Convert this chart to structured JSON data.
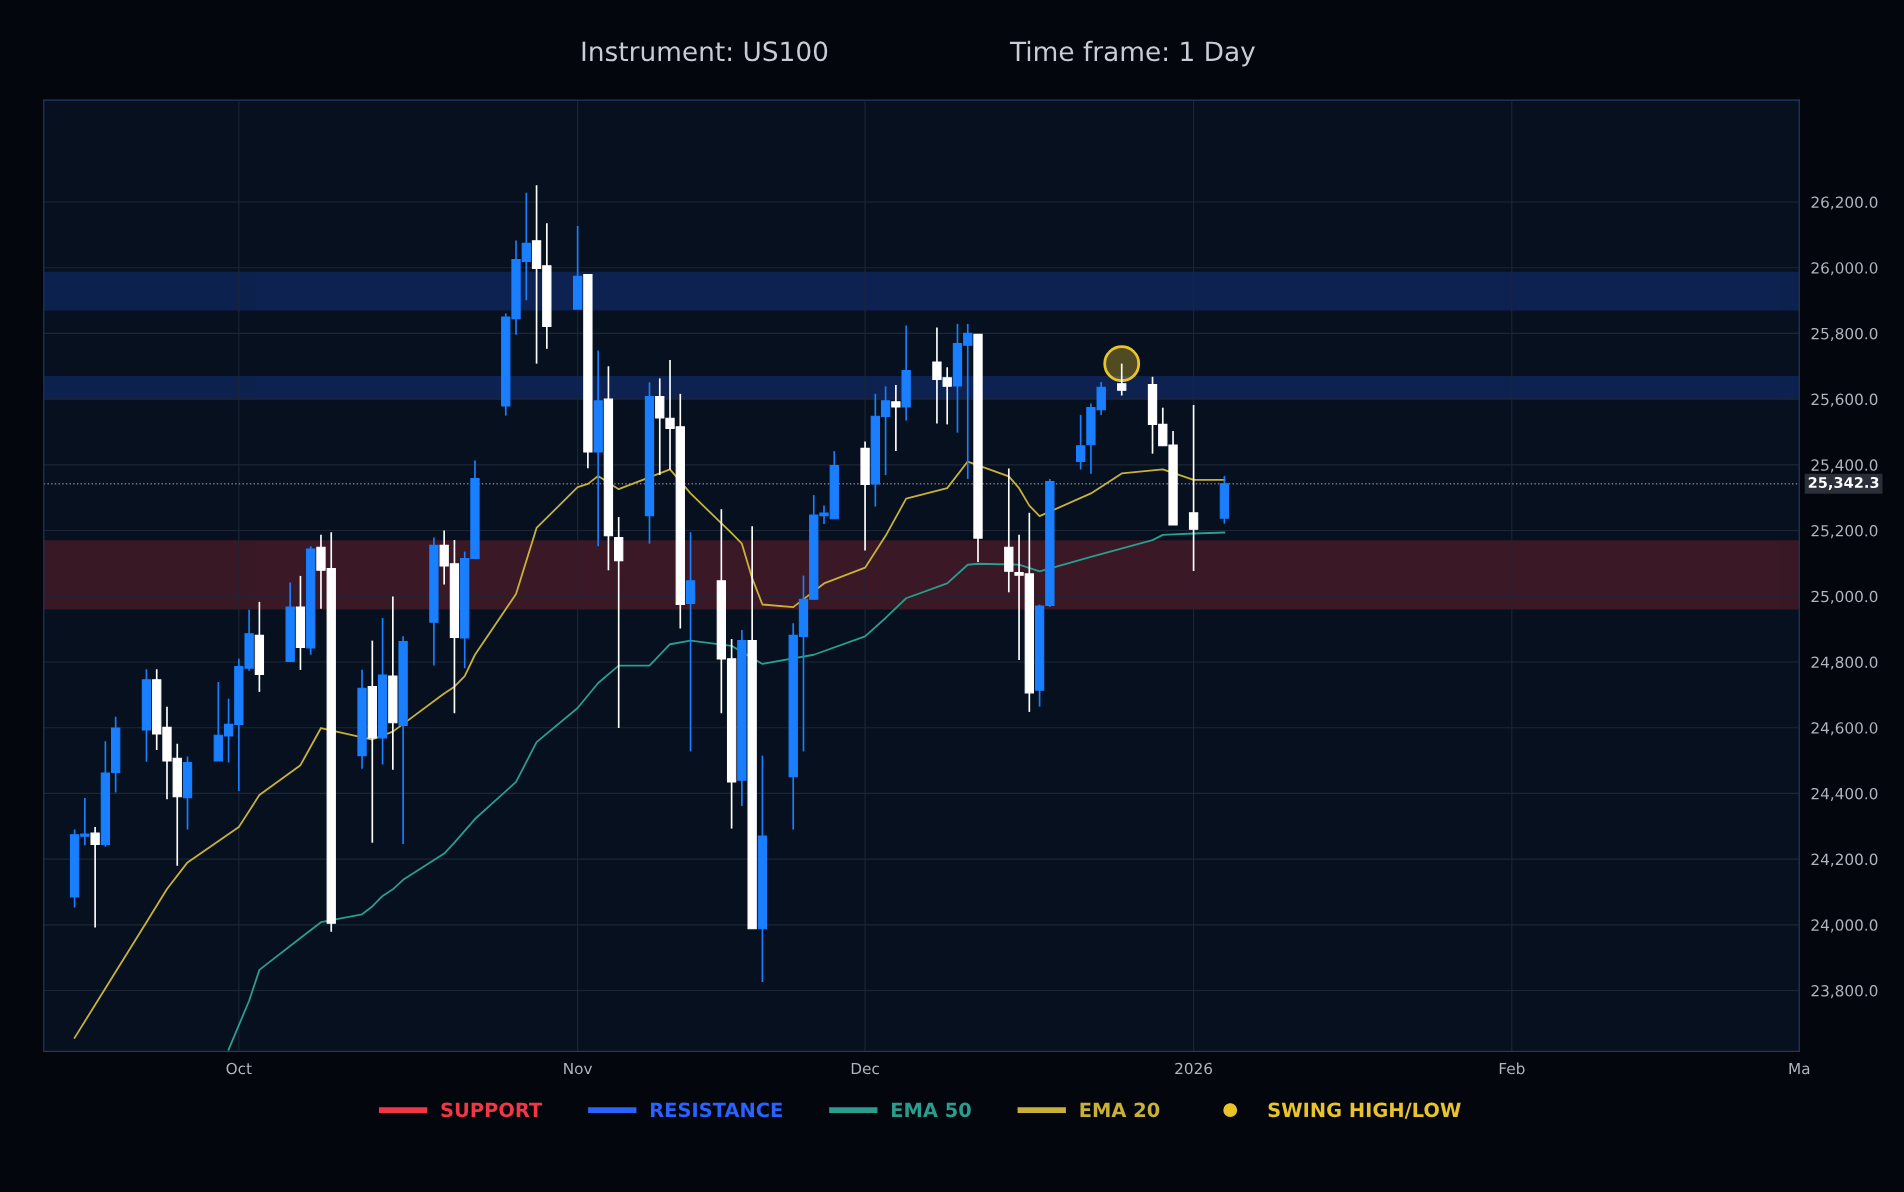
{
  "chart_data": {
    "type": "candlestick",
    "title": "Instrument: US100",
    "subtitle": "Time frame: 1 Day",
    "x": [
      "2025-09-15",
      "2025-09-16",
      "2025-09-17",
      "2025-09-18",
      "2025-09-19",
      "2025-09-22",
      "2025-09-23",
      "2025-09-24",
      "2025-09-25",
      "2025-09-26",
      "2025-09-29",
      "2025-09-30",
      "2025-10-01",
      "2025-10-02",
      "2025-10-03",
      "2025-10-06",
      "2025-10-07",
      "2025-10-08",
      "2025-10-09",
      "2025-10-10",
      "2025-10-13",
      "2025-10-14",
      "2025-10-15",
      "2025-10-16",
      "2025-10-17",
      "2025-10-20",
      "2025-10-21",
      "2025-10-22",
      "2025-10-23",
      "2025-10-24",
      "2025-10-27",
      "2025-10-28",
      "2025-10-29",
      "2025-10-30",
      "2025-10-31",
      "2025-11-03",
      "2025-11-04",
      "2025-11-05",
      "2025-11-06",
      "2025-11-07",
      "2025-11-10",
      "2025-11-11",
      "2025-11-12",
      "2025-11-13",
      "2025-11-14",
      "2025-11-17",
      "2025-11-18",
      "2025-11-19",
      "2025-11-20",
      "2025-11-21",
      "2025-11-24",
      "2025-11-25",
      "2025-11-26",
      "2025-11-27",
      "2025-11-28",
      "2025-12-01",
      "2025-12-02",
      "2025-12-03",
      "2025-12-04",
      "2025-12-05",
      "2025-12-08",
      "2025-12-09",
      "2025-12-10",
      "2025-12-11",
      "2025-12-12",
      "2025-12-15",
      "2025-12-16",
      "2025-12-17",
      "2025-12-18",
      "2025-12-19",
      "2025-12-22",
      "2025-12-23",
      "2025-12-24",
      "2025-12-26",
      "2025-12-29",
      "2025-12-30",
      "2025-12-31",
      "2026-01-02",
      "2026-01-05"
    ],
    "ohlc": [
      [
        24085,
        24290,
        24053,
        24274
      ],
      [
        24270,
        24386,
        24242,
        24276
      ],
      [
        24279,
        24298,
        23992,
        24245
      ],
      [
        24245,
        24559,
        24238,
        24462
      ],
      [
        24464,
        24633,
        24403,
        24599
      ],
      [
        24593,
        24778,
        24496,
        24746
      ],
      [
        24746,
        24778,
        24532,
        24581
      ],
      [
        24601,
        24664,
        24382,
        24499
      ],
      [
        24507,
        24551,
        24180,
        24390
      ],
      [
        24387,
        24512,
        24290,
        24494
      ],
      [
        24499,
        24739,
        24499,
        24577
      ],
      [
        24575,
        24688,
        24494,
        24610
      ],
      [
        24610,
        24810,
        24407,
        24786
      ],
      [
        24781,
        24959,
        24773,
        24886
      ],
      [
        24881,
        24983,
        24709,
        24762
      ],
      [
        24802,
        25042,
        24802,
        24967
      ],
      [
        24967,
        25062,
        24776,
        24844
      ],
      [
        24843,
        25152,
        24822,
        25144
      ],
      [
        25149,
        25187,
        24962,
        25079
      ],
      [
        25084,
        25195,
        23979,
        24005
      ],
      [
        24515,
        24776,
        24475,
        24720
      ],
      [
        24725,
        24865,
        24250,
        24569
      ],
      [
        24569,
        24934,
        24488,
        24760
      ],
      [
        24757,
        24999,
        24472,
        24615
      ],
      [
        24607,
        24878,
        24246,
        24862
      ],
      [
        24921,
        25179,
        24789,
        25155
      ],
      [
        25155,
        25200,
        25036,
        25092
      ],
      [
        25099,
        25171,
        24644,
        24875
      ],
      [
        24873,
        25136,
        24781,
        25115
      ],
      [
        25115,
        25413,
        25115,
        25358
      ],
      [
        25579,
        25861,
        25550,
        25850
      ],
      [
        25845,
        26083,
        25796,
        26025
      ],
      [
        26019,
        26228,
        25901,
        26074
      ],
      [
        26082,
        26251,
        25708,
        25998
      ],
      [
        26006,
        26135,
        25753,
        25821
      ],
      [
        25874,
        26127,
        25874,
        25974
      ],
      [
        25979,
        25979,
        25390,
        25439
      ],
      [
        25439,
        25748,
        25152,
        25595
      ],
      [
        25600,
        25700,
        25079,
        25184
      ],
      [
        25179,
        25241,
        24599,
        25108
      ],
      [
        25245,
        25651,
        25160,
        25608
      ],
      [
        25608,
        25663,
        25369,
        25543
      ],
      [
        25542,
        25719,
        25386,
        25511
      ],
      [
        25516,
        25616,
        24902,
        24975
      ],
      [
        24978,
        25195,
        24528,
        25047
      ],
      [
        25047,
        25265,
        24644,
        24809
      ],
      [
        24810,
        24870,
        24293,
        24435
      ],
      [
        24440,
        24897,
        24362,
        24865
      ],
      [
        24865,
        25213,
        23988,
        23988
      ],
      [
        23988,
        24515,
        23826,
        24270
      ],
      [
        24451,
        24918,
        24290,
        24881
      ],
      [
        24878,
        25063,
        24528,
        24991
      ],
      [
        24991,
        25308,
        24991,
        25247
      ],
      [
        25245,
        25276,
        25220,
        25253
      ],
      [
        25236,
        25442,
        25236,
        25398
      ],
      [
        25450,
        25471,
        25139,
        25340
      ],
      [
        25342,
        25616,
        25273,
        25548
      ],
      [
        25547,
        25639,
        25369,
        25595
      ],
      [
        25592,
        25643,
        25442,
        25576
      ],
      [
        25576,
        25824,
        25535,
        25687
      ],
      [
        25713,
        25818,
        25526,
        25660
      ],
      [
        25665,
        25697,
        25523,
        25639
      ],
      [
        25640,
        25829,
        25498,
        25769
      ],
      [
        25764,
        25829,
        25357,
        25800
      ],
      [
        25797,
        25797,
        25104,
        25177
      ],
      [
        25149,
        25389,
        25012,
        25076
      ],
      [
        25072,
        25187,
        24806,
        25064
      ],
      [
        25068,
        25254,
        24648,
        24706
      ],
      [
        24714,
        24975,
        24664,
        24970
      ],
      [
        24972,
        25357,
        24967,
        25349
      ],
      [
        25410,
        25552,
        25386,
        25458
      ],
      [
        25461,
        25587,
        25373,
        25574
      ],
      [
        25568,
        25652,
        25552,
        25636
      ],
      [
        25647,
        25708,
        25611,
        25627
      ],
      [
        25644,
        25668,
        25434,
        25523
      ],
      [
        25523,
        25574,
        25458,
        25458
      ],
      [
        25460,
        25503,
        25217,
        25217
      ],
      [
        25254,
        25582,
        25077,
        25204
      ],
      [
        25238,
        25366,
        25221,
        25342.3
      ]
    ],
    "colors": [
      "#1a7fff",
      "#1a7fff",
      "#ffffff",
      "#1a7fff",
      "#1a7fff",
      "#1a7fff",
      "#ffffff",
      "#ffffff",
      "#ffffff",
      "#1a7fff",
      "#1a7fff",
      "#1a7fff",
      "#1a7fff",
      "#1a7fff",
      "#ffffff",
      "#1a7fff",
      "#ffffff",
      "#1a7fff",
      "#ffffff",
      "#ffffff",
      "#1a7fff",
      "#ffffff",
      "#1a7fff",
      "#ffffff",
      "#1a7fff",
      "#1a7fff",
      "#ffffff",
      "#ffffff",
      "#1a7fff",
      "#1a7fff",
      "#1a7fff",
      "#1a7fff",
      "#1a7fff",
      "#ffffff",
      "#ffffff",
      "#1a7fff",
      "#ffffff",
      "#1a7fff",
      "#ffffff",
      "#ffffff",
      "#1a7fff",
      "#ffffff",
      "#ffffff",
      "#ffffff",
      "#1a7fff",
      "#ffffff",
      "#ffffff",
      "#1a7fff",
      "#ffffff",
      "#1a7fff",
      "#1a7fff",
      "#1a7fff",
      "#1a7fff",
      "#1a7fff",
      "#1a7fff",
      "#ffffff",
      "#1a7fff",
      "#1a7fff",
      "#ffffff",
      "#1a7fff",
      "#ffffff",
      "#ffffff",
      "#1a7fff",
      "#1a7fff",
      "#ffffff",
      "#ffffff",
      "#ffffff",
      "#ffffff",
      "#1a7fff",
      "#1a7fff",
      "#1a7fff",
      "#1a7fff",
      "#1a7fff",
      "#ffffff",
      "#ffffff",
      "#ffffff",
      "#ffffff",
      "#ffffff",
      "#1a7fff"
    ],
    "series": [
      {
        "name": "EMA 50",
        "type": "line",
        "color": "#2a9d8f",
        "x": [
          "2025-09-30",
          "2025-10-02",
          "2025-10-03",
          "2025-10-07",
          "2025-10-09",
          "2025-10-13",
          "2025-10-14",
          "2025-10-15",
          "2025-10-16",
          "2025-10-17",
          "2025-10-21",
          "2025-10-22",
          "2025-10-24",
          "2025-10-28",
          "2025-10-30",
          "2025-11-03",
          "2025-11-05",
          "2025-11-07",
          "2025-11-10",
          "2025-11-12",
          "2025-11-14",
          "2025-11-18",
          "2025-11-21",
          "2025-11-26",
          "2025-12-01",
          "2025-12-03",
          "2025-12-05",
          "2025-12-09",
          "2025-12-11",
          "2025-12-12",
          "2025-12-16",
          "2025-12-18",
          "2025-12-23",
          "2025-12-29",
          "2025-12-30",
          "2026-01-02",
          "2026-01-05"
        ],
        "values": [
          23620,
          23769,
          23863,
          23960,
          24008,
          24032,
          24056,
          24088,
          24108,
          24137,
          24217,
          24250,
          24322,
          24435,
          24556,
          24660,
          24736,
          24789,
          24789,
          24854,
          24865,
          24849,
          24794,
          24822,
          24878,
          24934,
          24994,
          25039,
          25096,
          25099,
          25096,
          25076,
          25120,
          25171,
          25187,
          25191,
          25194
        ]
      },
      {
        "name": "EMA 20",
        "type": "line",
        "color": "#c9b037",
        "x": [
          "2025-09-15",
          "2025-09-22",
          "2025-09-24",
          "2025-09-26",
          "2025-10-01",
          "2025-10-03",
          "2025-10-07",
          "2025-10-09",
          "2025-10-14",
          "2025-10-16",
          "2025-10-21",
          "2025-10-22",
          "2025-10-23",
          "2025-10-24",
          "2025-10-28",
          "2025-10-30",
          "2025-11-03",
          "2025-11-04",
          "2025-11-05",
          "2025-11-07",
          "2025-11-12",
          "2025-11-14",
          "2025-11-18",
          "2025-11-19",
          "2025-11-20",
          "2025-11-21",
          "2025-11-24",
          "2025-11-27",
          "2025-12-01",
          "2025-12-03",
          "2025-12-05",
          "2025-12-09",
          "2025-12-11",
          "2025-12-15",
          "2025-12-16",
          "2025-12-17",
          "2025-12-18",
          "2025-12-23",
          "2025-12-26",
          "2025-12-30",
          "2026-01-02",
          "2026-01-05"
        ],
        "values": [
          23656,
          24008,
          24109,
          24190,
          24298,
          24395,
          24486,
          24599,
          24564,
          24588,
          24704,
          24725,
          24757,
          24822,
          25007,
          25208,
          25332,
          25342,
          25366,
          25326,
          25386,
          25313,
          25192,
          25160,
          25055,
          24975,
          24967,
          25039,
          25087,
          25184,
          25297,
          25329,
          25410,
          25365,
          25329,
          25276,
          25244,
          25313,
          25374,
          25386,
          25354,
          25354
        ]
      },
      {
        "name": "SWING HIGH/LOW",
        "type": "scatter",
        "color": "#e8c32a",
        "marker": "circle",
        "x": [
          "2025-12-26"
        ],
        "values": [
          25708
        ]
      }
    ],
    "bands": [
      {
        "axis": "y",
        "from": 24962,
        "to": 25168,
        "label": "SUPPORT",
        "color": "#f23645"
      },
      {
        "axis": "y",
        "from": 25872,
        "to": 25985,
        "label": "RESISTANCE",
        "color": "#2962ff"
      },
      {
        "axis": "y",
        "from": 25603,
        "to": 25668,
        "label": null,
        "color": "#2962ff"
      }
    ],
    "ref_lines": [
      {
        "axis": "y",
        "value": 25342.3,
        "label": "25,342.3",
        "line_style": "dotted",
        "color": "#787b86"
      }
    ],
    "xlim": [
      "2025-09-12",
      "2026-03-02"
    ],
    "xticks": [
      {
        "value": "2025-10-01",
        "label": "Oct"
      },
      {
        "value": "2025-11-03",
        "label": "Nov"
      },
      {
        "value": "2025-12-01",
        "label": "Dec"
      },
      {
        "value": "2026-01-02",
        "label": "2026"
      },
      {
        "value": "2026-02-02",
        "label": "Feb"
      },
      {
        "value": "2026-03-02",
        "label": "Ma"
      }
    ],
    "ylim": [
      23615,
      26510
    ],
    "yticks": [
      {
        "value": 23800,
        "label": "23,800.0"
      },
      {
        "value": 24000,
        "label": "24,000.0"
      },
      {
        "value": 24200,
        "label": "24,200.0"
      },
      {
        "value": 24400,
        "label": "24,400.0"
      },
      {
        "value": 24600,
        "label": "24,600.0"
      },
      {
        "value": 24800,
        "label": "24,800.0"
      },
      {
        "value": 25000,
        "label": "25,000.0"
      },
      {
        "value": 25200,
        "label": "25,200.0"
      },
      {
        "value": 25400,
        "label": "25,400.0"
      },
      {
        "value": 25600,
        "label": "25,600.0"
      },
      {
        "value": 25800,
        "label": "25,800.0"
      },
      {
        "value": 26000,
        "label": "26,000.0"
      },
      {
        "value": 26200,
        "label": "26,200.0"
      }
    ],
    "grid": true,
    "legend": "bottom"
  }
}
